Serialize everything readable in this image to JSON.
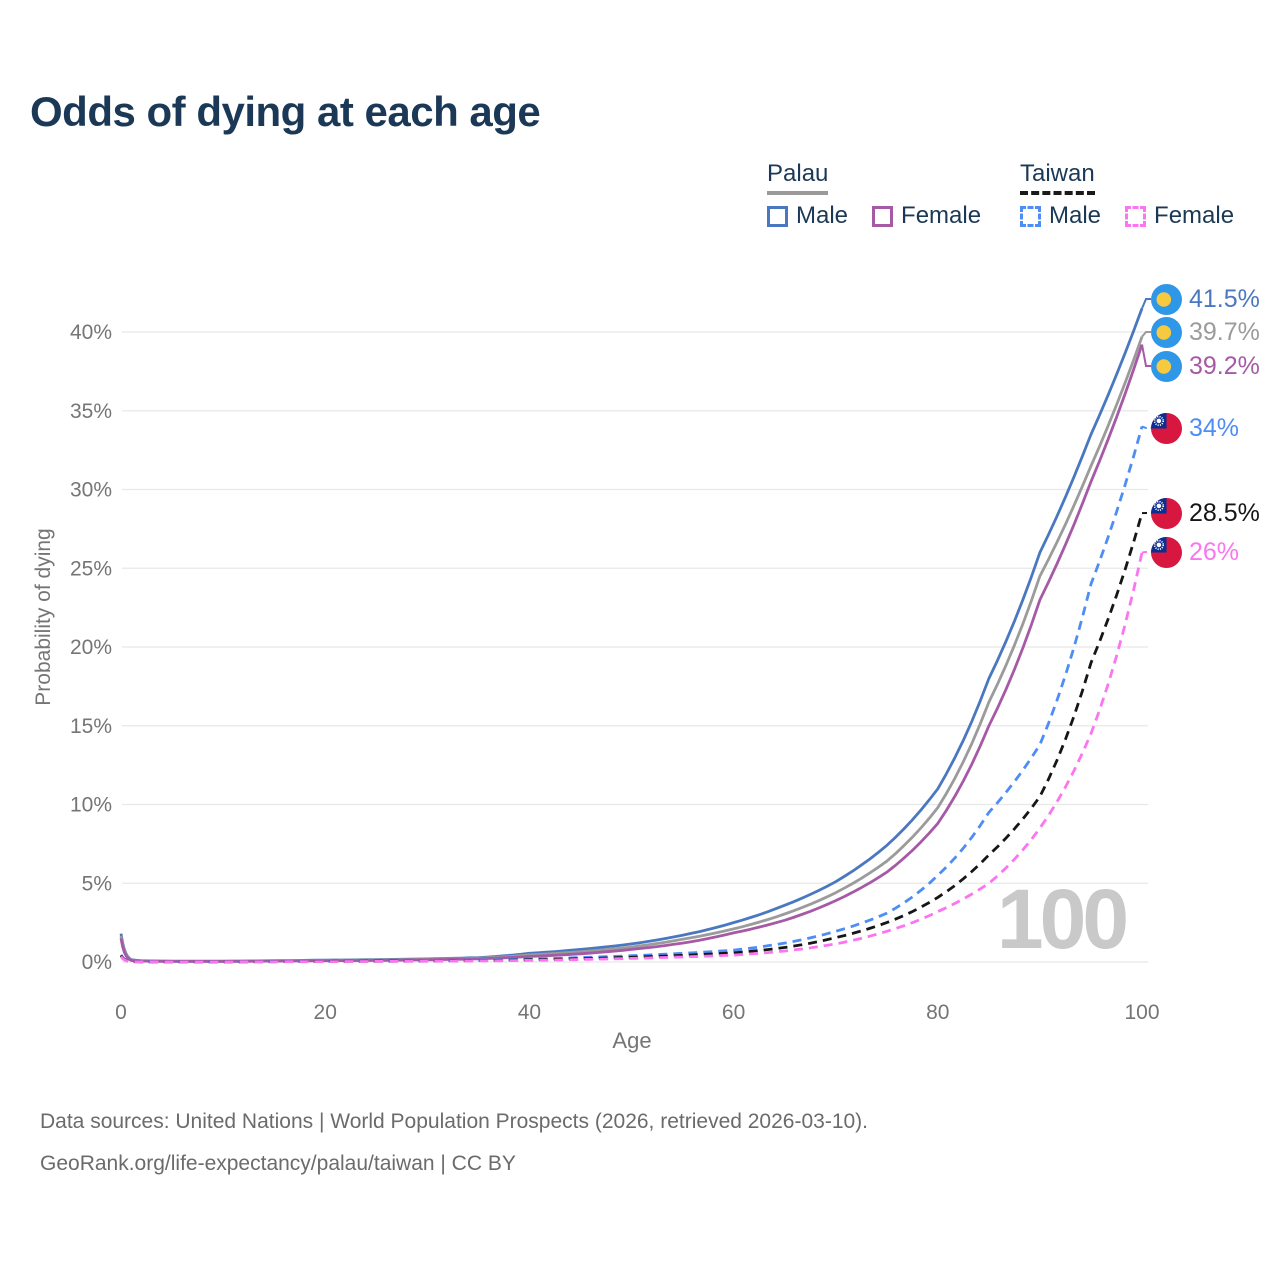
{
  "title": "Odds of dying at each age",
  "legend": {
    "groups": [
      {
        "label": "Palau",
        "line_style": "solid",
        "underline_color": "#9a9a9a",
        "items": [
          {
            "label": "Male",
            "color": "#4a78c0"
          },
          {
            "label": "Female",
            "color": "#a65aa5"
          }
        ]
      },
      {
        "label": "Taiwan",
        "line_style": "dashed",
        "underline_color": "#1a1a1a",
        "items": [
          {
            "label": "Male",
            "color": "#4e8df5"
          },
          {
            "label": "Female",
            "color": "#fb75f1"
          }
        ]
      }
    ]
  },
  "chart_data": {
    "type": "line",
    "title": "Odds of dying at each age",
    "xlabel": "Age",
    "ylabel": "Probability of dying",
    "xlim": [
      0,
      100
    ],
    "ylim": [
      0,
      43
    ],
    "x_ticks": [
      0,
      20,
      40,
      60,
      80,
      100
    ],
    "y_ticks": [
      0,
      5,
      10,
      15,
      20,
      25,
      30,
      35,
      40
    ],
    "y_tick_suffix": "%",
    "grid": true,
    "legend_position": "top-right",
    "ages": [
      0,
      1,
      2,
      5,
      10,
      15,
      20,
      25,
      30,
      35,
      40,
      45,
      50,
      55,
      60,
      65,
      70,
      75,
      80,
      85,
      90,
      95,
      100
    ],
    "series": [
      {
        "name": "Palau — Male",
        "country": "Palau",
        "sex": "Male",
        "flag": "palau",
        "style": "solid",
        "color": "#4a78c0",
        "end_label": "41.5%",
        "values": [
          1.8,
          0.15,
          0.08,
          0.05,
          0.05,
          0.08,
          0.12,
          0.15,
          0.2,
          0.28,
          0.55,
          0.8,
          1.15,
          1.7,
          2.5,
          3.6,
          5.1,
          7.4,
          11,
          18,
          26,
          33.5,
          41.5
        ]
      },
      {
        "name": "Palau — Both sexes",
        "country": "Palau",
        "sex": "Both sexes",
        "flag": "palau",
        "style": "solid",
        "color": "#9b9b9b",
        "end_label": "39.7%",
        "values": [
          1.65,
          0.12,
          0.07,
          0.04,
          0.04,
          0.07,
          0.1,
          0.13,
          0.17,
          0.24,
          0.45,
          0.65,
          0.95,
          1.45,
          2.1,
          3.05,
          4.4,
          6.4,
          9.8,
          16.5,
          24.5,
          31.5,
          39.7
        ]
      },
      {
        "name": "Palau — Female",
        "country": "Palau",
        "sex": "Female",
        "flag": "palau",
        "style": "solid",
        "color": "#a65aa5",
        "end_label": "39.2%",
        "values": [
          1.5,
          0.1,
          0.06,
          0.04,
          0.04,
          0.06,
          0.08,
          0.1,
          0.14,
          0.2,
          0.35,
          0.52,
          0.8,
          1.2,
          1.85,
          2.65,
          3.9,
          5.7,
          8.8,
          15,
          23,
          30.5,
          39.2
        ]
      },
      {
        "name": "Taiwan — Male",
        "country": "Taiwan",
        "sex": "Male",
        "flag": "taiwan",
        "style": "dashed",
        "color": "#4e8df5",
        "end_label": "34%",
        "values": [
          0.45,
          0.03,
          0.02,
          0.01,
          0.012,
          0.03,
          0.05,
          0.06,
          0.08,
          0.12,
          0.18,
          0.28,
          0.4,
          0.55,
          0.75,
          1.2,
          1.95,
          3.1,
          5.5,
          9.5,
          13.8,
          24,
          34
        ]
      },
      {
        "name": "Taiwan — Both sexes",
        "country": "Taiwan",
        "sex": "Both sexes",
        "flag": "taiwan",
        "style": "dashed",
        "color": "#161616",
        "end_label": "28.5%",
        "values": [
          0.4,
          0.025,
          0.015,
          0.01,
          0.01,
          0.02,
          0.04,
          0.05,
          0.06,
          0.09,
          0.14,
          0.21,
          0.3,
          0.42,
          0.58,
          0.92,
          1.55,
          2.5,
          4.1,
          6.8,
          10.5,
          19,
          28.5
        ]
      },
      {
        "name": "Taiwan — Female",
        "country": "Taiwan",
        "sex": "Female",
        "flag": "taiwan",
        "style": "dashed",
        "color": "#fb75f1",
        "end_label": "26%",
        "values": [
          0.35,
          0.02,
          0.012,
          0.008,
          0.008,
          0.015,
          0.025,
          0.035,
          0.05,
          0.07,
          0.1,
          0.16,
          0.23,
          0.32,
          0.44,
          0.7,
          1.15,
          1.95,
          3.2,
          5,
          8.5,
          14.5,
          26
        ]
      }
    ],
    "annotations": {
      "watermark": "100"
    }
  },
  "colors": {
    "title": "#1b3956",
    "axis_text": "#757575",
    "grid": "#e8e8e8",
    "footer_text": "#6b6b6b",
    "watermark": "#c9c9c9",
    "palau_flag_blue": "#2f97e8",
    "palau_flag_yellow": "#f7c93e",
    "taiwan_flag_red": "#d7173f",
    "taiwan_flag_blue": "#0a2e91"
  },
  "footer": {
    "line1": "Data sources: United Nations | World Population Prospects (2026, retrieved 2026-03-10).",
    "line2": "GeoRank.org/life-expectancy/palau/taiwan | CC BY"
  }
}
